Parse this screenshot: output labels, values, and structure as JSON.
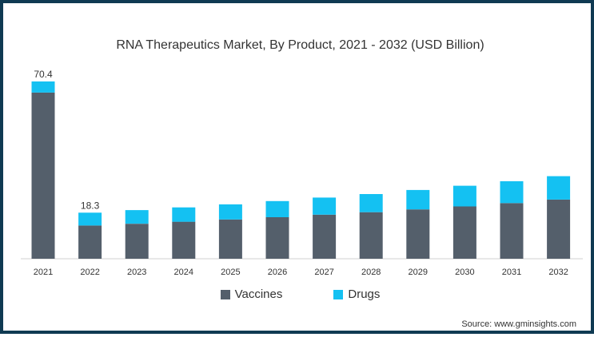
{
  "chart_data": {
    "type": "bar",
    "stacked": true,
    "title": "RNA Therapeutics Market, By Product, 2021 - 2032 (USD Billion)",
    "categories": [
      "2021",
      "2022",
      "2023",
      "2024",
      "2025",
      "2026",
      "2027",
      "2028",
      "2029",
      "2030",
      "2031",
      "2032"
    ],
    "series": [
      {
        "name": "Vaccines",
        "color": "#545f6b",
        "values": [
          66.0,
          13.2,
          13.9,
          14.7,
          15.6,
          16.5,
          17.5,
          18.5,
          19.6,
          20.8,
          22.1,
          23.5
        ]
      },
      {
        "name": "Drugs",
        "color": "#14c1f2",
        "values": [
          4.4,
          5.1,
          5.4,
          5.7,
          6.0,
          6.4,
          6.8,
          7.2,
          7.7,
          8.2,
          8.7,
          9.3
        ]
      }
    ],
    "data_labels": [
      {
        "category": "2021",
        "text": "70.4"
      },
      {
        "category": "2022",
        "text": "18.3"
      }
    ],
    "ylim": [
      0,
      75
    ],
    "xlabel": "",
    "ylabel": "",
    "legend": "bottom-center",
    "grid": false
  },
  "source": "Source: www.gminsights.com"
}
